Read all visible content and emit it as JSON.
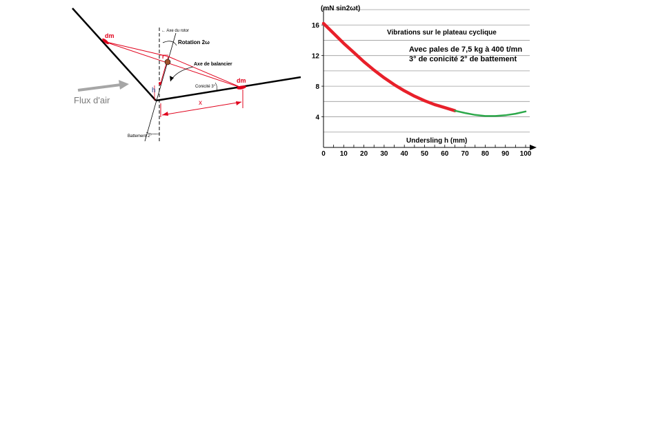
{
  "diagram": {
    "labels": {
      "dm_left": "dm",
      "dm_right": "dm",
      "axe_rotor": "← Axe du rotor",
      "rotation": "Rotation 2ω",
      "axe_balancier": "Axe de balancier",
      "conicite": "Conicité 3°",
      "r": "r",
      "h": "h",
      "x": "x",
      "flux": "Flux d'air",
      "battement": "Battement 2°"
    },
    "colors": {
      "red": "#e0001b",
      "arrow_gray": "#a6a6a6"
    }
  },
  "chart_data": {
    "type": "line",
    "title": "Vibrations sur le plateau cyclique",
    "annotation_line1": "Avec pales de 7,5 kg à 400 t/mn",
    "annotation_line2": "3° de conicité  2° de battement",
    "xlabel": "Undersling  h (mm)",
    "ylabel": "(mN sin2ωt)",
    "xlim": [
      0,
      100
    ],
    "ylim": [
      0,
      18
    ],
    "x_ticks": [
      "0",
      "10",
      "20",
      "30",
      "40",
      "50",
      "60",
      "70",
      "80",
      "90",
      "100"
    ],
    "y_ticks": [
      "4",
      "8",
      "12",
      "16"
    ],
    "grid": "horizontal",
    "series": [
      {
        "color": "#e8202a",
        "x": [
          0,
          5,
          10,
          15,
          20,
          25,
          30,
          35,
          40,
          45,
          50,
          55,
          60,
          65
        ],
        "y": [
          16.2,
          14.9,
          13.6,
          12.4,
          11.2,
          10.1,
          9.1,
          8.2,
          7.4,
          6.7,
          6.1,
          5.6,
          5.2,
          4.8
        ]
      },
      {
        "color": "#2ca84a",
        "x": [
          65,
          70,
          75,
          80,
          85,
          90,
          95,
          100
        ],
        "y": [
          4.8,
          4.5,
          4.25,
          4.1,
          4.1,
          4.2,
          4.4,
          4.7
        ]
      }
    ]
  }
}
